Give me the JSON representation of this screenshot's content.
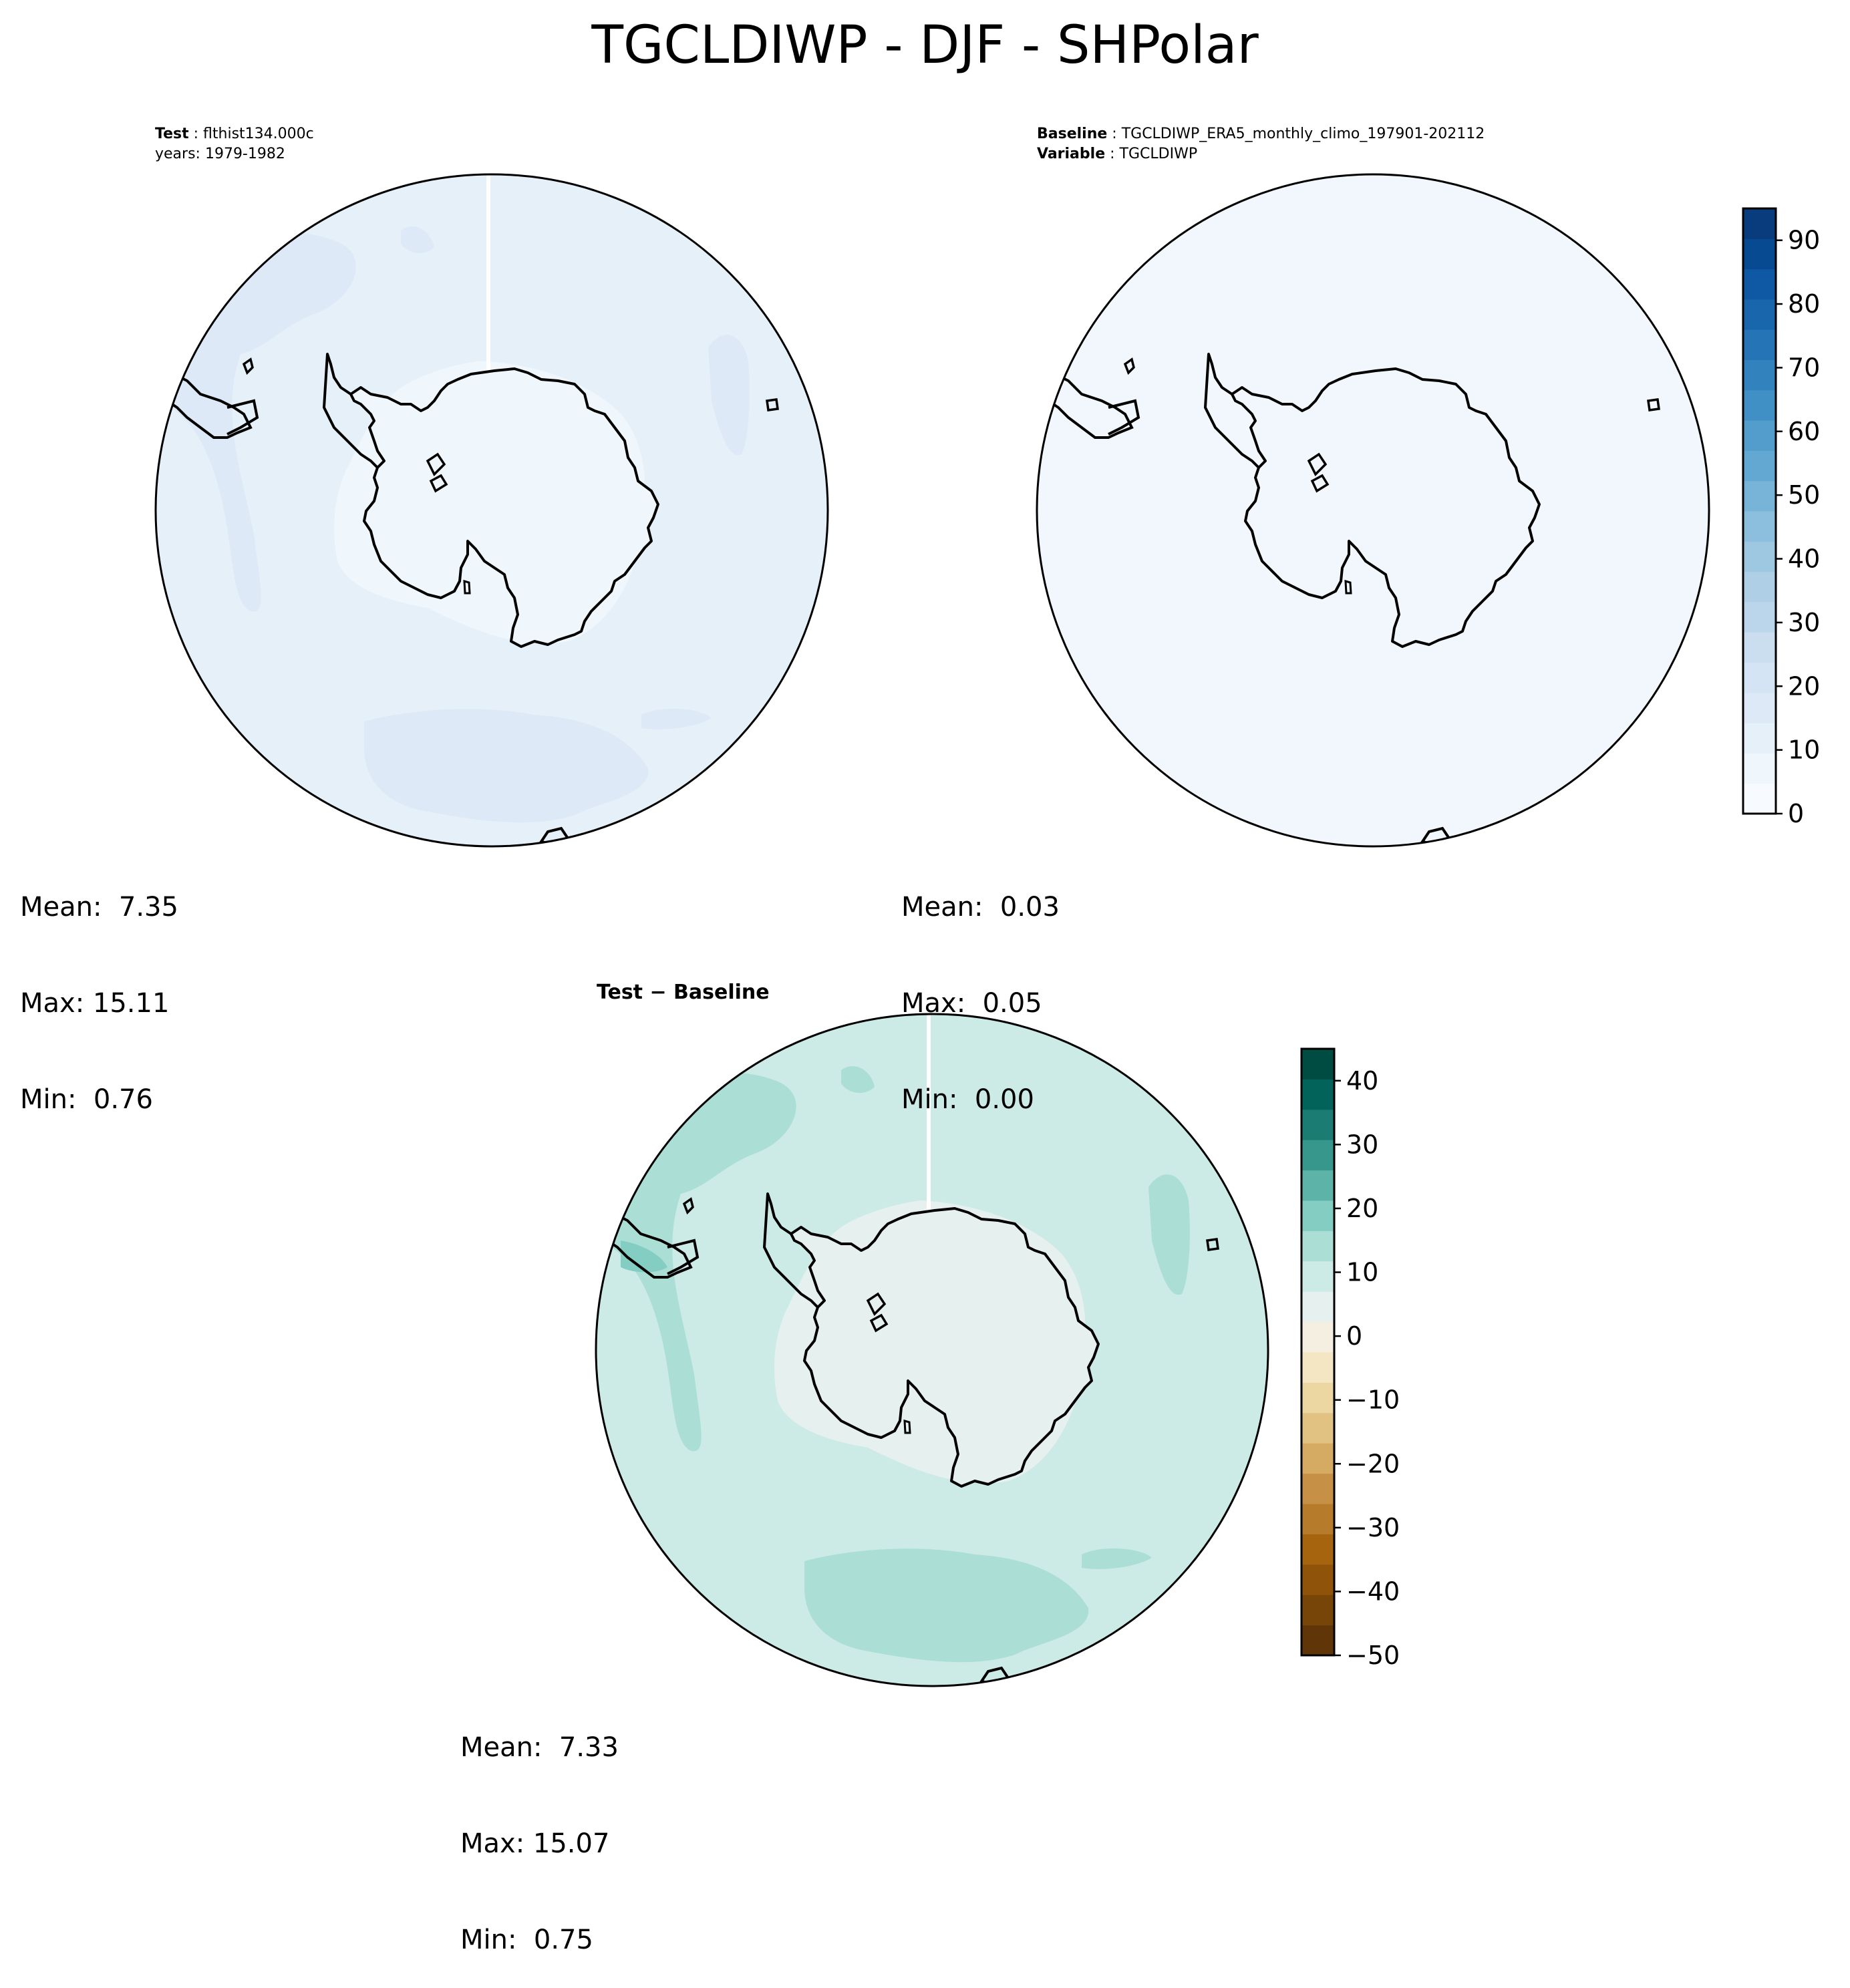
{
  "figure": {
    "title": "TGCLDIWP - DJF - SHPolar"
  },
  "test_panel": {
    "label_name": "Test",
    "case": "flthist134.000c",
    "years": "years: 1979-1982",
    "stats": {
      "mean": "Mean:  7.35",
      "max": "Max: 15.11",
      "min": "Min:  0.76"
    }
  },
  "baseline_panel": {
    "label_name": "Baseline",
    "case": "TGCLDIWP_ERA5_monthly_climo_197901-202112",
    "variable_name": "Variable",
    "variable": "TGCLDIWP",
    "stats": {
      "mean": "Mean:  0.03",
      "max": "Max:  0.05",
      "min": "Min:  0.00"
    }
  },
  "diff_panel": {
    "title": "Test − Baseline",
    "stats": {
      "mean": "Mean:  7.33",
      "max": "Max: 15.07",
      "min": "Min:  0.75"
    }
  },
  "colorbar_main": {
    "min": 0,
    "max": 95,
    "ticks": [
      "0",
      "10",
      "20",
      "30",
      "40",
      "50",
      "60",
      "70",
      "80",
      "90"
    ],
    "colors": [
      "#f7fbff",
      "#eff6fc",
      "#e6f0f9",
      "#dde9f6",
      "#d5e4f4",
      "#cadef0",
      "#bbd6eb",
      "#aecfe5",
      "#9ec8e1",
      "#8bbfdd",
      "#77b4d8",
      "#63a8d3",
      "#529dcc",
      "#4190c5",
      "#3282be",
      "#2474b6",
      "#1966ad",
      "#0f58a3",
      "#084a91",
      "#083c7d"
    ]
  },
  "colorbar_diff": {
    "min": -50,
    "max": 45,
    "ticks": [
      "−50",
      "−40",
      "−30",
      "−20",
      "−10",
      "0",
      "10",
      "20",
      "30",
      "40"
    ],
    "colors": [
      "#603608",
      "#784508",
      "#8f5409",
      "#a6640f",
      "#b67b2b",
      "#c69147",
      "#d5aa63",
      "#e2c283",
      "#ecd7a2",
      "#f4e6c2",
      "#f5efe1",
      "#e6f1ef",
      "#cdebe6",
      "#abdfd6",
      "#84cdc2",
      "#5db3a8",
      "#37978d",
      "#1a7c72",
      "#016359",
      "#014c42"
    ]
  }
}
